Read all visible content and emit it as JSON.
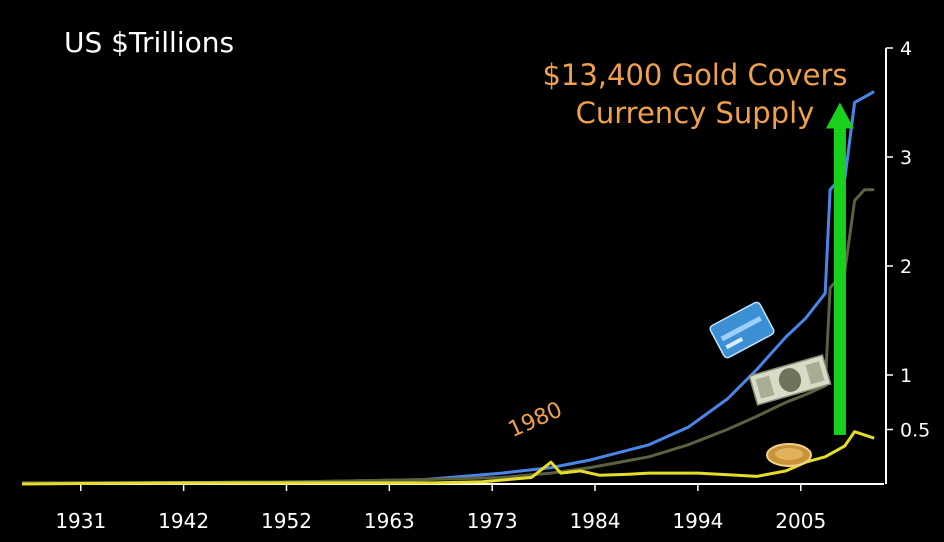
{
  "chart_data": {
    "type": "line",
    "title": "US $Trillions",
    "annotations": {
      "headline": [
        "$13,400 Gold Covers",
        "Currency Supply"
      ],
      "year_label": "1980"
    },
    "x_ticks": [
      "1931",
      "1942",
      "1952",
      "1963",
      "1973",
      "1984",
      "1994",
      "2005"
    ],
    "y_ticks": [
      0.5,
      1,
      2,
      3,
      4
    ],
    "y_tick_labels": [
      "0.5",
      "1",
      "2",
      "3",
      "4"
    ],
    "xlim": [
      1926,
      2014
    ],
    "ylim": [
      0,
      4
    ],
    "grid": false,
    "series": [
      {
        "color": "#4a86e8",
        "points": [
          [
            1926,
            0.01
          ],
          [
            1940,
            0.01
          ],
          [
            1955,
            0.02
          ],
          [
            1967,
            0.04
          ],
          [
            1975,
            0.1
          ],
          [
            1980,
            0.15
          ],
          [
            1984,
            0.22
          ],
          [
            1990,
            0.36
          ],
          [
            1994,
            0.52
          ],
          [
            1998,
            0.78
          ],
          [
            2001,
            1.05
          ],
          [
            2004,
            1.35
          ],
          [
            2006,
            1.52
          ],
          [
            2008,
            1.75
          ],
          [
            2008.5,
            2.7
          ],
          [
            2009,
            2.75
          ],
          [
            2010,
            2.8
          ],
          [
            2011,
            3.5
          ],
          [
            2012,
            3.55
          ],
          [
            2013,
            3.6
          ]
        ]
      },
      {
        "color": "#5c6140",
        "points": [
          [
            1926,
            0.01
          ],
          [
            1940,
            0.01
          ],
          [
            1955,
            0.02
          ],
          [
            1967,
            0.04
          ],
          [
            1975,
            0.06
          ],
          [
            1980,
            0.1
          ],
          [
            1984,
            0.15
          ],
          [
            1990,
            0.25
          ],
          [
            1994,
            0.36
          ],
          [
            1998,
            0.5
          ],
          [
            2001,
            0.62
          ],
          [
            2004,
            0.75
          ],
          [
            2006,
            0.82
          ],
          [
            2008,
            0.9
          ],
          [
            2008.5,
            1.8
          ],
          [
            2009,
            1.85
          ],
          [
            2010,
            1.95
          ],
          [
            2011,
            2.6
          ],
          [
            2012,
            2.7
          ],
          [
            2013,
            2.7
          ]
        ]
      },
      {
        "color": "#e6dc2a",
        "points": [
          [
            1926,
            0.0
          ],
          [
            1940,
            0.01
          ],
          [
            1955,
            0.01
          ],
          [
            1968,
            0.01
          ],
          [
            1973,
            0.02
          ],
          [
            1978,
            0.06
          ],
          [
            1980,
            0.2
          ],
          [
            1981,
            0.1
          ],
          [
            1983,
            0.12
          ],
          [
            1985,
            0.08
          ],
          [
            1988,
            0.09
          ],
          [
            1990,
            0.1
          ],
          [
            1995,
            0.1
          ],
          [
            1999,
            0.08
          ],
          [
            2001,
            0.07
          ],
          [
            2004,
            0.12
          ],
          [
            2006,
            0.2
          ],
          [
            2008,
            0.25
          ],
          [
            2010,
            0.35
          ],
          [
            2011,
            0.48
          ],
          [
            2012,
            0.45
          ],
          [
            2013,
            0.42
          ]
        ]
      }
    ],
    "arrow": {
      "x": 2009.5,
      "from": 0.45,
      "to": 3.5,
      "color": "#19d11d"
    },
    "icons": [
      "credit-card-icon",
      "dollar-bill-icon",
      "gold-coin-icon"
    ]
  }
}
